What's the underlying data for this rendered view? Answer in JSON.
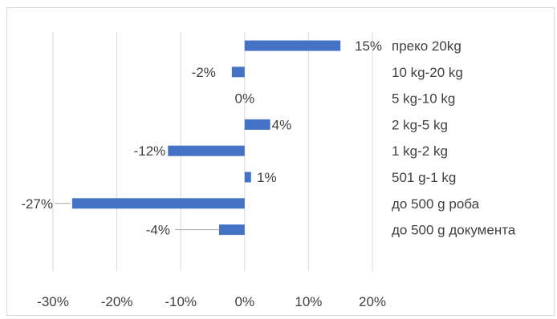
{
  "chart_data": {
    "type": "bar",
    "orientation": "horizontal",
    "categories": [
      "преко 20kg",
      "10 kg-20 kg",
      "5 kg-10 kg",
      "2 kg-5 kg",
      "1 kg-2 kg",
      "501 g-1 kg",
      "до 500 g роба",
      "до 500 g документа"
    ],
    "values": [
      15,
      -2,
      0,
      4,
      -12,
      1,
      -27,
      -4
    ],
    "data_labels": [
      "15%",
      "-2%",
      "0%",
      "4%",
      "-12%",
      "1%",
      "-27%",
      "-4%"
    ],
    "x_ticks": [
      "-30%",
      "-20%",
      "-10%",
      "0%",
      "10%",
      "20%"
    ],
    "xlim": [
      -30,
      20
    ],
    "grid": "vertical",
    "bar_color": "#4472c4",
    "gridline_color": "#d9d9d9",
    "text_color": "#404040"
  }
}
